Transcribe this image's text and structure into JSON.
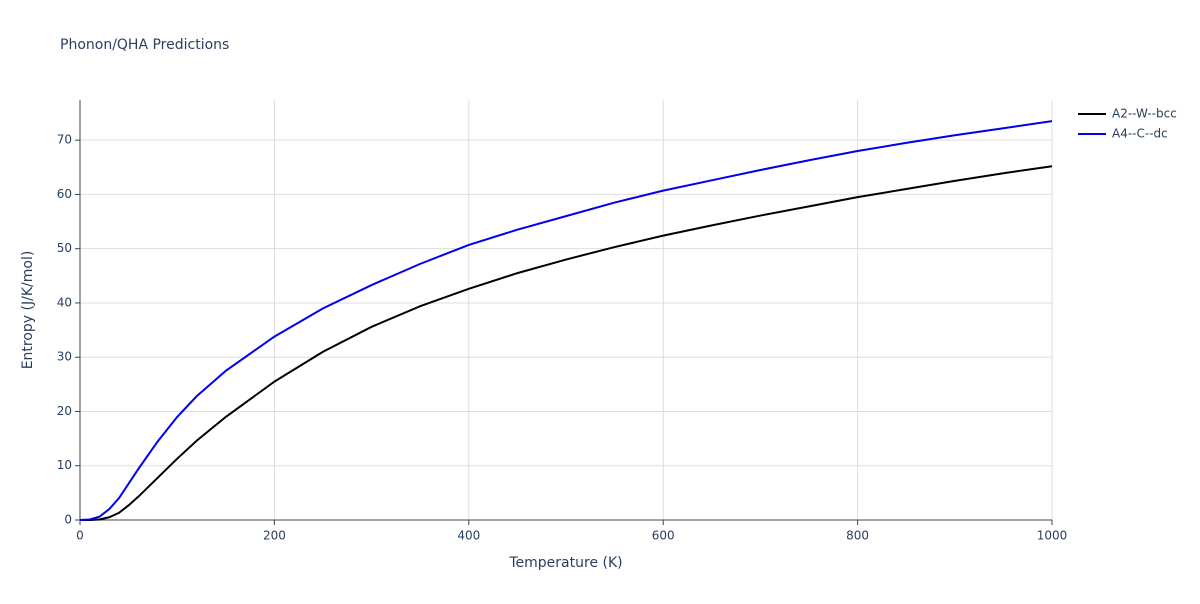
{
  "chart_data": {
    "type": "line",
    "title": "Phonon/QHA Predictions",
    "x_label": "Temperature (K)",
    "y_label": "Entropy (J/K/mol)",
    "x": [
      0,
      10,
      20,
      30,
      40,
      50,
      60,
      80,
      100,
      120,
      150,
      200,
      250,
      300,
      350,
      400,
      450,
      500,
      550,
      600,
      650,
      700,
      750,
      800,
      850,
      900,
      950,
      1000
    ],
    "series": [
      {
        "name": "A2--W--bcc",
        "color": "#000000",
        "values": [
          0,
          0,
          0.1,
          0.5,
          1.3,
          2.7,
          4.3,
          7.8,
          11.3,
          14.6,
          19,
          25.5,
          31,
          35.6,
          39.4,
          42.6,
          45.5,
          48,
          50.3,
          52.4,
          54.3,
          56.1,
          57.8,
          59.5,
          61,
          62.5,
          63.9,
          65.2
        ]
      },
      {
        "name": "A4--C--dc",
        "color": "#0000ee",
        "values": [
          0,
          0.1,
          0.6,
          2,
          4,
          6.7,
          9.4,
          14.5,
          19,
          22.8,
          27.5,
          33.8,
          39,
          43.3,
          47.2,
          50.7,
          53.5,
          56,
          58.5,
          60.7,
          62.6,
          64.5,
          66.3,
          68,
          69.5,
          70.9,
          72.2,
          73.5
        ]
      }
    ],
    "xlim": [
      0,
      1000
    ],
    "xticks": [
      0,
      200,
      400,
      600,
      800,
      1000
    ],
    "ylim": [
      0,
      77.4
    ],
    "yticks": [
      0,
      10,
      20,
      30,
      40,
      50,
      60,
      70
    ],
    "grid": true,
    "legend": "right"
  }
}
